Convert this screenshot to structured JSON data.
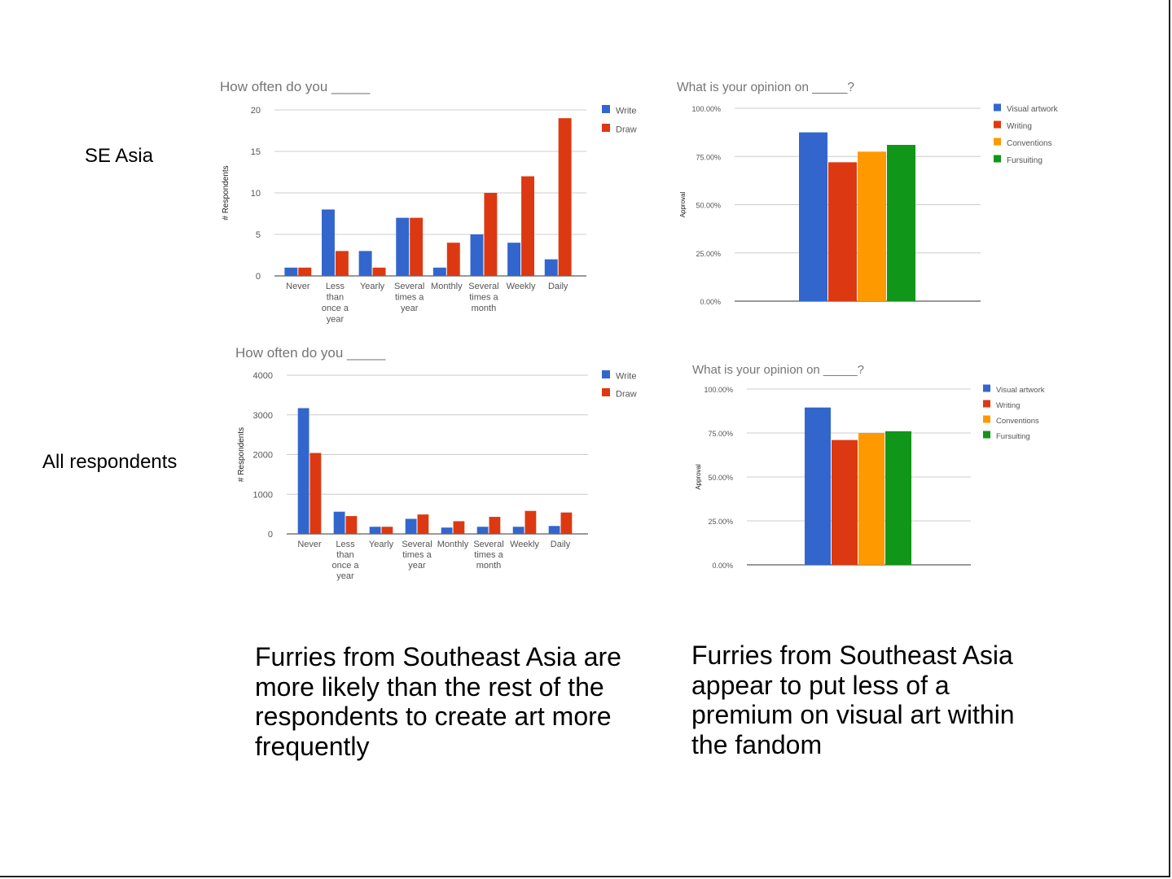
{
  "row_labels": {
    "top": "SE Asia",
    "bottom": "All respondents"
  },
  "captions": {
    "left": "Furries from Southeast Asia are more likely than the rest of the respondents to create art more frequently",
    "right": "Furries from Southeast Asia appear to put less of a premium on visual art within the fandom"
  },
  "colors": {
    "write": "#3366cc",
    "draw": "#dc3912",
    "visual_artwork": "#3366cc",
    "writing": "#dc3912",
    "conventions": "#ff9900",
    "fursuiting": "#109618",
    "grid": "#cccccc",
    "axis_text": "#555555",
    "title_text": "#757575"
  },
  "chart_data": [
    {
      "id": "se-asia-frequency",
      "type": "bar",
      "title": "How often do you _____",
      "ylabel": "# Respondents",
      "ylim": [
        0,
        20
      ],
      "yticks": [
        0,
        5,
        10,
        15,
        20
      ],
      "categories": [
        [
          "Never"
        ],
        [
          "Less",
          "than",
          "once a",
          "year"
        ],
        [
          "Yearly"
        ],
        [
          "Several",
          "times a",
          "year"
        ],
        [
          "Monthly"
        ],
        [
          "Several",
          "times a",
          "month"
        ],
        [
          "Weekly"
        ],
        [
          "Daily"
        ]
      ],
      "series": [
        {
          "name": "Write",
          "color": "#3366cc",
          "values": [
            1,
            8,
            3,
            7,
            1,
            5,
            4,
            2
          ]
        },
        {
          "name": "Draw",
          "color": "#dc3912",
          "values": [
            1,
            3,
            1,
            7,
            4,
            10,
            12,
            19
          ]
        }
      ],
      "legend": "right",
      "grid": true
    },
    {
      "id": "se-asia-opinion",
      "type": "bar",
      "title": "What is your opinion on _____?",
      "ylabel": "Approval",
      "ylim": [
        0,
        1
      ],
      "yticks": [
        "0.00%",
        "25.00%",
        "50.00%",
        "75.00%",
        "100.00%"
      ],
      "categories": [
        [
          ""
        ]
      ],
      "series": [
        {
          "name": "Visual artwork",
          "color": "#3366cc",
          "values": [
            0.875
          ]
        },
        {
          "name": "Writing",
          "color": "#dc3912",
          "values": [
            0.72
          ]
        },
        {
          "name": "Conventions",
          "color": "#ff9900",
          "values": [
            0.775
          ]
        },
        {
          "name": "Fursuiting",
          "color": "#109618",
          "values": [
            0.81
          ]
        }
      ],
      "legend": "right",
      "grid": true
    },
    {
      "id": "all-frequency",
      "type": "bar",
      "title": "How often do you _____",
      "ylabel": "# Respondents",
      "ylim": [
        0,
        4000
      ],
      "yticks": [
        0,
        1000,
        2000,
        3000,
        4000
      ],
      "categories": [
        [
          "Never"
        ],
        [
          "Less",
          "than",
          "once a",
          "year"
        ],
        [
          "Yearly"
        ],
        [
          "Several",
          "times a",
          "year"
        ],
        [
          "Monthly"
        ],
        [
          "Several",
          "times a",
          "month"
        ],
        [
          "Weekly"
        ],
        [
          "Daily"
        ]
      ],
      "series": [
        {
          "name": "Write",
          "color": "#3366cc",
          "values": [
            3170,
            560,
            180,
            380,
            160,
            180,
            180,
            200
          ]
        },
        {
          "name": "Draw",
          "color": "#dc3912",
          "values": [
            2040,
            450,
            180,
            490,
            320,
            430,
            580,
            540
          ]
        }
      ],
      "legend": "right",
      "grid": true
    },
    {
      "id": "all-opinion",
      "type": "bar",
      "title": "What is your opinion on _____?",
      "ylabel": "Approval",
      "ylim": [
        0,
        1
      ],
      "yticks": [
        "0.00%",
        "25.00%",
        "50.00%",
        "75.00%",
        "100.00%"
      ],
      "categories": [
        [
          ""
        ]
      ],
      "series": [
        {
          "name": "Visual artwork",
          "color": "#3366cc",
          "values": [
            0.895
          ]
        },
        {
          "name": "Writing",
          "color": "#dc3912",
          "values": [
            0.71
          ]
        },
        {
          "name": "Conventions",
          "color": "#ff9900",
          "values": [
            0.75
          ]
        },
        {
          "name": "Fursuiting",
          "color": "#109618",
          "values": [
            0.76
          ]
        }
      ],
      "legend": "right",
      "grid": true
    }
  ]
}
